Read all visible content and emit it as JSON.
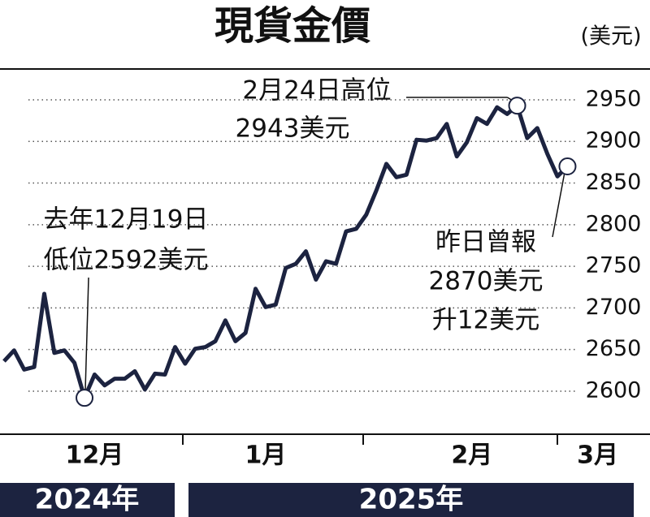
{
  "chart_data": {
    "type": "line",
    "title": "現貨金價",
    "unit": "(美元)",
    "x": [
      0,
      1,
      2,
      3,
      4,
      5,
      6,
      7,
      8,
      9,
      10,
      11,
      12,
      13,
      14,
      15,
      16,
      17,
      18,
      19,
      20,
      21,
      22,
      23,
      24,
      25,
      26,
      27,
      28,
      29,
      30,
      31,
      32,
      33,
      34,
      35,
      36,
      37,
      38,
      39,
      40,
      41,
      42,
      43,
      44,
      45,
      46,
      47,
      48,
      49,
      50,
      51,
      52,
      53,
      54,
      55,
      56
    ],
    "series": [
      {
        "name": "現貨金價",
        "color": "#1c2340",
        "values": [
          2636,
          2649,
          2626,
          2629,
          2717,
          2646,
          2649,
          2634,
          2592,
          2620,
          2607,
          2615,
          2615,
          2624,
          2602,
          2621,
          2620,
          2653,
          2633,
          2651,
          2653,
          2660,
          2685,
          2660,
          2670,
          2723,
          2701,
          2704,
          2748,
          2753,
          2768,
          2734,
          2756,
          2753,
          2792,
          2795,
          2812,
          2841,
          2873,
          2857,
          2860,
          2902,
          2901,
          2904,
          2921,
          2882,
          2899,
          2928,
          2921,
          2941,
          2933,
          2943,
          2904,
          2916,
          2885,
          2858,
          2870
        ]
      }
    ],
    "xlim": [
      -0.4,
      64.2
    ],
    "xticks": [
      {
        "value": 9,
        "label": "12月"
      },
      {
        "value": 26,
        "label": "1月"
      },
      {
        "value": 46.5,
        "label": "2月"
      },
      {
        "value": 59,
        "label": "3月"
      }
    ],
    "ylim": [
      2548.3,
      2987
    ],
    "yticks": [
      2600,
      2650,
      2700,
      2750,
      2800,
      2850,
      2900,
      2950
    ],
    "grid": true,
    "years": [
      "2024年",
      "2025年"
    ],
    "annotations": [
      {
        "lines": [
          "去年12月19日",
          "低位2592美元"
        ]
      },
      {
        "lines": [
          "2月24日高位",
          "2943美元"
        ]
      },
      {
        "lines": [
          "昨日曾報",
          "2870美元",
          "升12美元"
        ]
      }
    ]
  }
}
